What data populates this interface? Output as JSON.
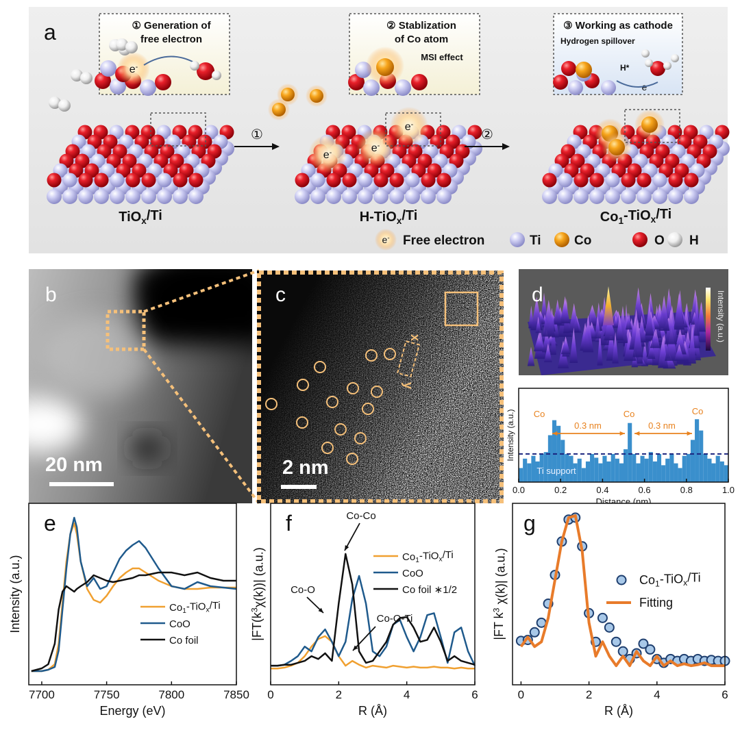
{
  "diagram": {
    "label": "a",
    "insets": [
      {
        "title": [
          "① Generation of",
          "free electron"
        ]
      },
      {
        "title": [
          "② Stablization",
          "of Co atom"
        ],
        "note": "MSI effect"
      },
      {
        "title": [
          "③ Working as cathode"
        ],
        "note": "Hydrogen spillover",
        "species": "H*"
      }
    ],
    "arrows": [
      "①",
      "②"
    ],
    "stages": [
      {
        "parts": [
          "TiO",
          "x",
          "/Ti"
        ],
        "script": "sub"
      },
      {
        "parts": [
          "H-TiO",
          "x",
          "/Ti"
        ],
        "script": "sub"
      },
      {
        "parts": [
          "Co",
          "1",
          "-TiO",
          "x",
          "/Ti"
        ],
        "script": "sub"
      }
    ],
    "electron": {
      "parts": [
        "e",
        "-"
      ],
      "script": "sup"
    },
    "legend": [
      "Free electron",
      "Ti",
      "Co",
      "O",
      "H"
    ]
  },
  "images": {
    "b": {
      "label": "b",
      "scale": "20 nm"
    },
    "c": {
      "label": "c",
      "scale": "2 nm",
      "axes": [
        "x",
        "y"
      ]
    },
    "d": {
      "label": "d",
      "colorbar": "Intensity (a.u.)"
    }
  },
  "chart_data": [
    {
      "type": "histogram",
      "color": "#3a8fcc",
      "xlabel": "Distance (nm)",
      "ylabel": "Intensity (a.u.)",
      "bins": [
        0,
        0.02,
        0.04,
        0.06,
        0.08,
        0.1,
        0.12,
        0.14,
        0.16,
        0.18,
        0.2,
        0.22,
        0.24,
        0.26,
        0.28,
        0.3,
        0.32,
        0.34,
        0.36,
        0.38,
        0.4,
        0.42,
        0.44,
        0.46,
        0.48,
        0.5,
        0.52,
        0.54,
        0.56,
        0.58,
        0.6,
        0.62,
        0.64,
        0.66,
        0.68,
        0.7,
        0.72,
        0.74,
        0.76,
        0.78,
        0.8,
        0.82,
        0.84,
        0.86,
        0.88,
        0.9,
        0.92,
        0.94,
        0.96,
        0.98,
        1.0
      ],
      "values": [
        0.15,
        0.25,
        0.2,
        0.28,
        0.22,
        0.3,
        0.32,
        0.5,
        0.66,
        0.6,
        0.45,
        0.3,
        0.28,
        0.2,
        0.25,
        0.15,
        0.22,
        0.3,
        0.26,
        0.2,
        0.28,
        0.22,
        0.3,
        0.25,
        0.2,
        0.35,
        0.63,
        0.3,
        0.2,
        0.28,
        0.25,
        0.32,
        0.22,
        0.3,
        0.18,
        0.25,
        0.3,
        0.2,
        0.15,
        0.28,
        0.3,
        0.45,
        0.67,
        0.55,
        0.3,
        0.25,
        0.2,
        0.28,
        0.22,
        0.18
      ],
      "hline": 0.3,
      "hline_color": "#1a237e",
      "xlim": [
        0,
        1.0
      ],
      "ylim": [
        0,
        1.0
      ],
      "xticks": [
        {
          "value": 0,
          "label": "0.0"
        },
        0.2,
        0.4,
        0.6,
        0.8,
        {
          "value": 1.0,
          "label": "1.0"
        }
      ],
      "annotations": [
        "Co",
        "Co",
        "Co",
        "0.3 nm",
        "0.3 nm",
        "Ti support"
      ]
    },
    {
      "type": "line",
      "panel_label": "e",
      "xlabel": "Energy (eV)",
      "ylabel": "Intensity (a.u.)",
      "x": [
        7692,
        7700,
        7705,
        7710,
        7713,
        7716,
        7719,
        7722,
        7725,
        7727,
        7730,
        7735,
        7740,
        7745,
        7750,
        7755,
        7760,
        7765,
        7770,
        7775,
        7780,
        7790,
        7800,
        7810,
        7820,
        7830,
        7840,
        7850
      ],
      "series": [
        {
          "name": {
            "parts": [
              "Co",
              "1",
              "-TiO",
              "x",
              "/Ti"
            ],
            "script": "sub"
          },
          "color": "#f0a030",
          "values": [
            0,
            0,
            0.01,
            0.05,
            0.2,
            0.5,
            0.8,
            1.0,
            1.08,
            1.0,
            0.8,
            0.6,
            0.52,
            0.5,
            0.55,
            0.62,
            0.68,
            0.72,
            0.75,
            0.75,
            0.72,
            0.66,
            0.62,
            0.6,
            0.6,
            0.61,
            0.61,
            0.61
          ]
        },
        {
          "name": "CoO",
          "color": "#1f5a8c",
          "values": [
            0,
            0,
            0.01,
            0.03,
            0.15,
            0.45,
            0.75,
            1.0,
            1.12,
            1.05,
            0.8,
            0.62,
            0.68,
            0.6,
            0.62,
            0.72,
            0.82,
            0.88,
            0.92,
            0.95,
            0.9,
            0.75,
            0.62,
            0.6,
            0.65,
            0.62,
            0.61,
            0.6
          ]
        },
        {
          "name": "Co foil",
          "color": "#111111",
          "values": [
            0,
            0.02,
            0.05,
            0.2,
            0.45,
            0.58,
            0.62,
            0.6,
            0.58,
            0.6,
            0.62,
            0.65,
            0.7,
            0.68,
            0.66,
            0.65,
            0.66,
            0.67,
            0.68,
            0.7,
            0.7,
            0.72,
            0.72,
            0.7,
            0.72,
            0.68,
            0.66,
            0.66
          ]
        }
      ],
      "xlim": [
        7690,
        7850
      ],
      "ylim": [
        -0.1,
        1.225
      ],
      "xticks": [
        7700,
        7750,
        7800,
        7850
      ]
    },
    {
      "type": "line",
      "panel_label": "f",
      "xlabel": "R (Å)",
      "ylabel": {
        "parts": [
          "|FT(k",
          "3",
          "χ(k))| (a.u.)"
        ],
        "script": "sup"
      },
      "x": [
        0,
        0.2,
        0.4,
        0.6,
        0.8,
        1.0,
        1.2,
        1.4,
        1.6,
        1.8,
        2.0,
        2.2,
        2.4,
        2.6,
        2.8,
        3.0,
        3.2,
        3.4,
        3.6,
        3.8,
        4.0,
        4.2,
        4.4,
        4.6,
        4.8,
        5.0,
        5.2,
        5.4,
        5.6,
        5.8,
        6.0
      ],
      "series": [
        {
          "name": {
            "parts": [
              "Co",
              "1",
              "-TiO",
              "x",
              "/Ti"
            ],
            "script": "sub"
          },
          "color": "#f0a030",
          "values": [
            0.02,
            0.02,
            0.03,
            0.05,
            0.08,
            0.15,
            0.25,
            0.33,
            0.36,
            0.3,
            0.15,
            0.05,
            0.1,
            0.06,
            0.03,
            0.05,
            0.04,
            0.03,
            0.05,
            0.04,
            0.03,
            0.04,
            0.03,
            0.03,
            0.04,
            0.03,
            0.03,
            0.02,
            0.03,
            0.02,
            0.02
          ]
        },
        {
          "name": "CoO",
          "color": "#1f5a8c",
          "values": [
            0.05,
            0.05,
            0.06,
            0.1,
            0.15,
            0.25,
            0.2,
            0.35,
            0.43,
            0.3,
            0.15,
            0.3,
            0.75,
            0.99,
            0.7,
            0.2,
            0.15,
            0.25,
            0.48,
            0.53,
            0.35,
            0.2,
            0.35,
            0.58,
            0.6,
            0.35,
            0.08,
            0.4,
            0.45,
            0.2,
            0.05
          ]
        },
        {
          "name": "Co foil ∗1/2",
          "color": "#111111",
          "values": [
            0.05,
            0.05,
            0.06,
            0.06,
            0.08,
            0.1,
            0.15,
            0.12,
            0.18,
            0.1,
            0.7,
            1.22,
            0.9,
            0.2,
            0.08,
            0.1,
            0.2,
            0.3,
            0.48,
            0.55,
            0.56,
            0.45,
            0.3,
            0.32,
            0.45,
            0.3,
            0.1,
            0.15,
            0.1,
            0.08,
            0.06
          ]
        }
      ],
      "xlim": [
        0,
        6
      ],
      "ylim": [
        -0.15,
        1.75
      ],
      "xticks": [
        0,
        2,
        4,
        6
      ],
      "annotations": [
        "Co-Co",
        "Co-O",
        "Co-O-Ti"
      ]
    },
    {
      "type": "line",
      "panel_label": "g",
      "xlabel": "R (Å)",
      "ylabel": {
        "parts": [
          "|FT k",
          "3",
          " χ(k)| (a.u.)"
        ],
        "script": "sup"
      },
      "x": [
        0,
        0.2,
        0.4,
        0.6,
        0.8,
        1.0,
        1.2,
        1.4,
        1.6,
        1.8,
        2.0,
        2.2,
        2.4,
        2.6,
        2.8,
        3.0,
        3.2,
        3.4,
        3.6,
        3.8,
        4.0,
        4.2,
        4.4,
        4.6,
        4.8,
        5.0,
        5.2,
        5.4,
        5.6,
        5.8,
        6.0
      ],
      "series": [
        {
          "name": {
            "parts": [
              "Co",
              "1",
              "-TiO",
              "x",
              "/Ti"
            ],
            "script": "sub"
          },
          "color": "#1f3f6f",
          "fill": "#a8c8e8",
          "marker": "circle",
          "values": [
            0.31,
            0.32,
            0.4,
            0.5,
            0.7,
            1.0,
            1.35,
            1.58,
            1.6,
            1.3,
            0.6,
            0.3,
            0.55,
            0.45,
            0.3,
            0.2,
            0.12,
            0.18,
            0.28,
            0.22,
            0.12,
            0.08,
            0.12,
            0.1,
            0.12,
            0.1,
            0.12,
            0.1,
            0.11,
            0.1,
            0.1
          ]
        },
        {
          "name": "Fitting",
          "color": "#e87b2a",
          "values": [
            0.25,
            0.35,
            0.25,
            0.3,
            0.55,
            0.95,
            1.35,
            1.6,
            1.62,
            1.25,
            0.5,
            0.15,
            0.3,
            0.15,
            0.05,
            0.15,
            0.05,
            0.2,
            0.1,
            0.05,
            0.15,
            0.05,
            0.1,
            0.05,
            0.07,
            0.05,
            0.06,
            0.08,
            0.05,
            0.05,
            0.05
          ]
        }
      ],
      "xlim": [
        -0.25,
        6
      ],
      "ylim": [
        -0.15,
        1.75
      ],
      "xticks": [
        0,
        2,
        4,
        6
      ]
    }
  ]
}
